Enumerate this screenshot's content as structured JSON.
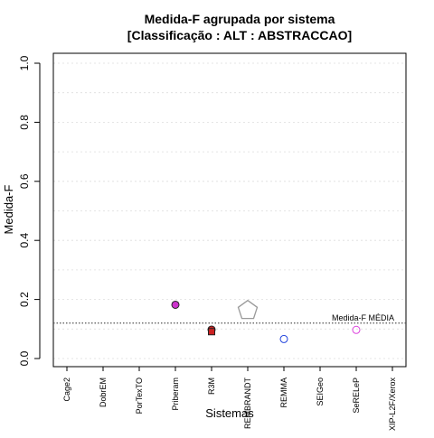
{
  "chart_data": {
    "type": "scatter",
    "title": "Medida-F agrupada por sistema",
    "subtitle": "[Classificação : ALT : ABSTRACCAO]",
    "xlabel": "Sistemas",
    "ylabel": "Medida-F",
    "ylim": [
      0,
      1
    ],
    "yticks": [
      "0.0",
      "0.2",
      "0.4",
      "0.6",
      "0.8",
      "1.0"
    ],
    "grid": true,
    "categories": [
      "Cage2",
      "DobrEM",
      "PorTexTO",
      "Priberam",
      "R3M",
      "REMBRANDT",
      "REMMA",
      "SEIGeo",
      "SeRELeP",
      "XIP-L2F/Xerox"
    ],
    "points": [
      {
        "system": "Priberam",
        "value": 0.182,
        "marker": "circle",
        "fill": "#cc33cc",
        "stroke": "#222222"
      },
      {
        "system": "R3M",
        "value": 0.098,
        "marker": "circle",
        "fill": "#cc2222",
        "stroke": "#222222"
      },
      {
        "system": "R3M",
        "value": 0.091,
        "marker": "square",
        "fill": "#cc2222",
        "stroke": "#222222"
      },
      {
        "system": "REMBRANDT",
        "value": 0.163,
        "marker": "pentagon",
        "fill": "none",
        "stroke": "#999999"
      },
      {
        "system": "REMMA",
        "value": 0.066,
        "marker": "circle",
        "fill": "none",
        "stroke": "#2244dd"
      },
      {
        "system": "SeRELeP",
        "value": 0.097,
        "marker": "circle",
        "fill": "none",
        "stroke": "#dd44dd"
      }
    ],
    "reference_line": {
      "label": "Medida-F MÉDIA",
      "value": 0.12
    }
  }
}
